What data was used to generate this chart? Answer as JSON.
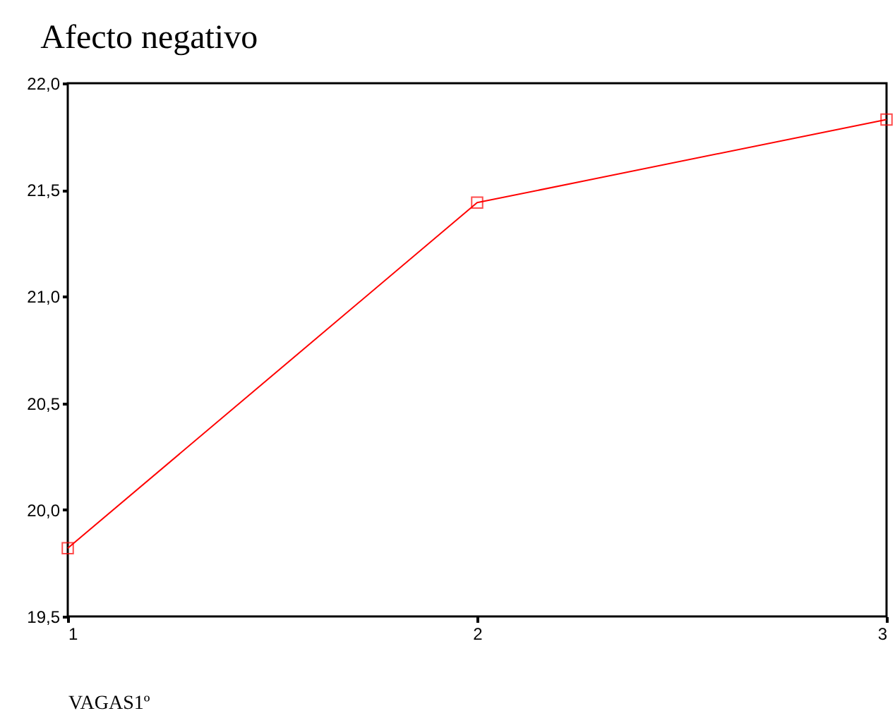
{
  "chart_data": {
    "type": "line",
    "title": "Afecto negativo",
    "xlabel": "VAGAS1º",
    "x": [
      1,
      2,
      3
    ],
    "series": [
      {
        "color": "#ff0000",
        "values": [
          19.82,
          21.44,
          21.83
        ]
      }
    ],
    "xlim": [
      1,
      3
    ],
    "xticks": [
      1,
      2,
      3
    ],
    "ylim": [
      19.5,
      22.0
    ],
    "yticks": [
      {
        "value": 19.5,
        "label": "19,5"
      },
      {
        "value": 20.0,
        "label": "20,0"
      },
      {
        "value": 20.5,
        "label": "20,5"
      },
      {
        "value": 21.0,
        "label": "21,0"
      },
      {
        "value": 21.5,
        "label": "21,5"
      },
      {
        "value": 22.0,
        "label": "22,0"
      }
    ],
    "marker": "square",
    "grid": false
  }
}
